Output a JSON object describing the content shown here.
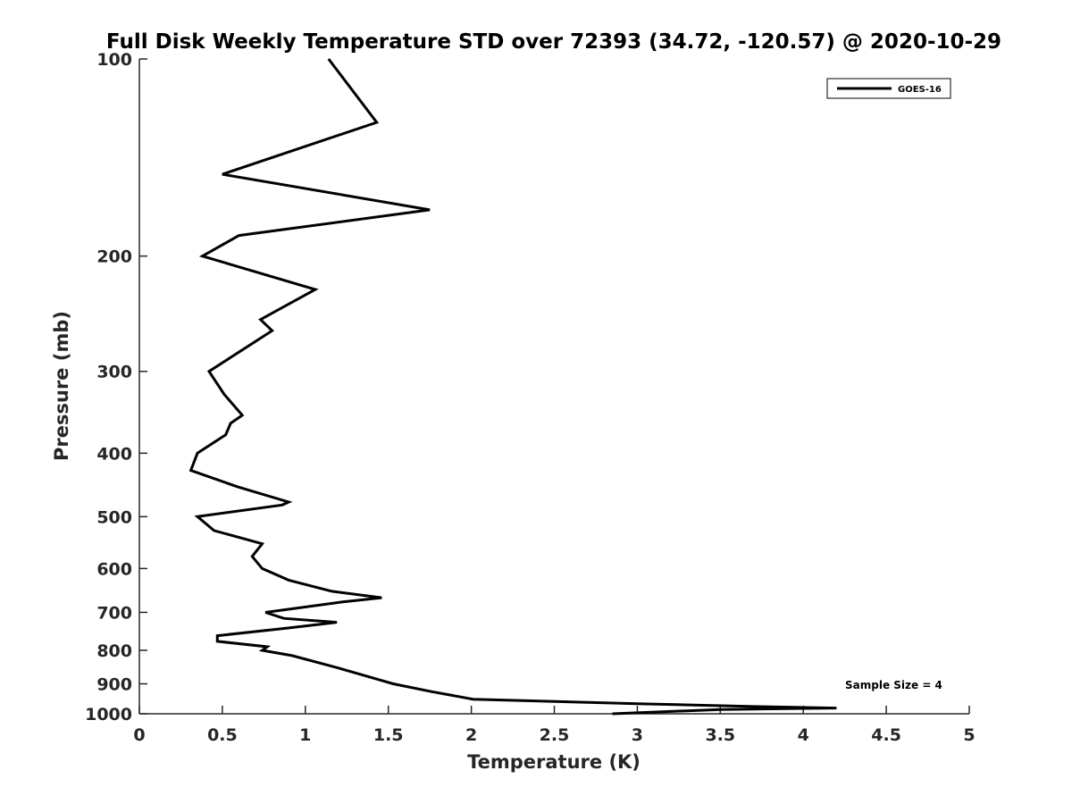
{
  "chart_data": {
    "type": "line",
    "title": "Full Disk Weekly Temperature STD over 72393 (34.72, -120.57) @ 2020-10-29",
    "xlabel": "Temperature (K)",
    "ylabel": "Pressure (mb)",
    "xlim": [
      0,
      5
    ],
    "ylim": [
      1000,
      100
    ],
    "y_scale": "log",
    "y_reversed": true,
    "x_ticks": [
      "0",
      "0.5",
      "1",
      "1.5",
      "2",
      "2.5",
      "3",
      "3.5",
      "4",
      "4.5",
      "5"
    ],
    "y_ticks": [
      "100",
      "200",
      "300",
      "400",
      "500",
      "600",
      "700",
      "800",
      "900",
      "1000"
    ],
    "grid": false,
    "legend_position": "top-right",
    "annotation": "Sample Size = 4",
    "series": [
      {
        "name": "GOES-16",
        "color": "#000000",
        "points": [
          [
            1.14,
            100
          ],
          [
            1.43,
            125
          ],
          [
            0.5,
            150
          ],
          [
            1.75,
            170
          ],
          [
            0.6,
            186
          ],
          [
            0.38,
            200
          ],
          [
            1.06,
            225
          ],
          [
            0.73,
            250
          ],
          [
            0.8,
            260
          ],
          [
            0.42,
            300
          ],
          [
            0.51,
            325
          ],
          [
            0.62,
            350
          ],
          [
            0.55,
            360
          ],
          [
            0.52,
            375
          ],
          [
            0.35,
            400
          ],
          [
            0.31,
            425
          ],
          [
            0.59,
            450
          ],
          [
            0.9,
            475
          ],
          [
            0.86,
            480
          ],
          [
            0.35,
            500
          ],
          [
            0.45,
            525
          ],
          [
            0.74,
            550
          ],
          [
            0.68,
            575
          ],
          [
            0.74,
            600
          ],
          [
            0.9,
            625
          ],
          [
            1.16,
            650
          ],
          [
            1.46,
            665
          ],
          [
            1.22,
            675
          ],
          [
            0.76,
            700
          ],
          [
            0.87,
            715
          ],
          [
            1.19,
            725
          ],
          [
            0.89,
            740
          ],
          [
            0.47,
            760
          ],
          [
            0.47,
            775
          ],
          [
            0.77,
            790
          ],
          [
            0.74,
            800
          ],
          [
            0.92,
            815
          ],
          [
            1.19,
            850
          ],
          [
            1.53,
            900
          ],
          [
            1.76,
            925
          ],
          [
            2.01,
            950
          ],
          [
            3.0,
            965
          ],
          [
            3.7,
            975
          ],
          [
            4.2,
            980
          ],
          [
            3.5,
            985
          ],
          [
            2.85,
            1000
          ]
        ]
      }
    ]
  }
}
